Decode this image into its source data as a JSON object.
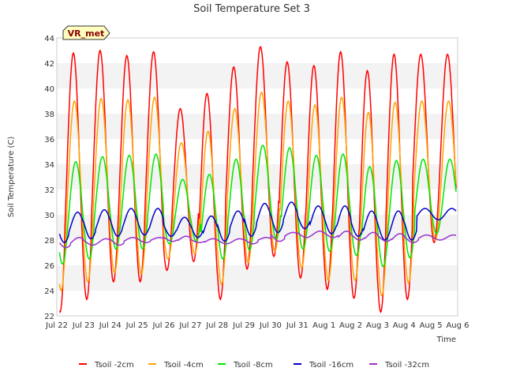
{
  "chart_data": {
    "type": "line",
    "title": "Soil Temperature Set 3",
    "xlabel": "Time",
    "ylabel": "Soil Temperature (C)",
    "badge": "VR_met",
    "ylim": [
      22,
      44
    ],
    "xlim": [
      "2024-07-22",
      "2024-08-06"
    ],
    "x_tick_labels": [
      "Jul 22",
      "Jul 23",
      "Jul 24",
      "Jul 25",
      "Jul 26",
      "Jul 27",
      "Jul 28",
      "Jul 29",
      "Jul 30",
      "Jul 31",
      "Aug 1",
      "Aug 2",
      "Aug 3",
      "Aug 4",
      "Aug 5",
      "Aug 6"
    ],
    "y_ticks": [
      22,
      24,
      26,
      28,
      30,
      32,
      34,
      36,
      38,
      40,
      42,
      44
    ],
    "grid": "horizontal alternating bands",
    "legend_position": "bottom",
    "dates": [
      "Jul 22",
      "Jul 23",
      "Jul 24",
      "Jul 25",
      "Jul 26",
      "Jul 27",
      "Jul 28",
      "Jul 29",
      "Jul 30",
      "Jul 31",
      "Aug 1",
      "Aug 2",
      "Aug 3",
      "Aug 4",
      "Aug 5"
    ],
    "series": [
      {
        "name": "Tsoil -2cm",
        "color": "#ff0000",
        "daily_max": [
          42.8,
          43.0,
          42.6,
          42.9,
          38.4,
          39.6,
          41.7,
          43.3,
          42.1,
          41.8,
          42.9,
          41.4,
          42.7,
          42.7,
          42.7
        ],
        "daily_min": [
          22.3,
          23.3,
          24.7,
          24.7,
          25.6,
          26.3,
          23.3,
          25.7,
          26.7,
          25.0,
          24.1,
          23.4,
          22.3,
          23.3,
          27.8
        ]
      },
      {
        "name": "Tsoil -4cm",
        "color": "#ffa500",
        "daily_max": [
          39.0,
          39.2,
          39.1,
          39.3,
          35.7,
          36.6,
          38.4,
          39.7,
          39.0,
          38.7,
          39.3,
          38.1,
          38.9,
          39.0,
          39.0
        ],
        "daily_min": [
          24.0,
          24.7,
          25.4,
          25.3,
          26.5,
          26.9,
          24.5,
          26.2,
          27.1,
          25.8,
          24.8,
          24.8,
          23.6,
          24.6,
          28.0
        ]
      },
      {
        "name": "Tsoil -8cm",
        "color": "#00e600",
        "daily_max": [
          34.2,
          34.6,
          34.7,
          34.8,
          32.8,
          33.2,
          34.4,
          35.5,
          35.3,
          34.7,
          34.8,
          33.8,
          34.3,
          34.4,
          34.4
        ],
        "daily_min": [
          26.1,
          26.5,
          27.3,
          27.3,
          27.7,
          27.9,
          26.5,
          27.2,
          28.1,
          27.3,
          27.1,
          26.8,
          25.9,
          26.6,
          28.5
        ]
      },
      {
        "name": "Tsoil -16cm",
        "color": "#0000cc",
        "daily_max": [
          30.2,
          30.4,
          30.5,
          30.5,
          29.8,
          29.9,
          30.3,
          30.9,
          31.0,
          30.7,
          30.7,
          30.3,
          30.3,
          30.5,
          30.5
        ],
        "daily_min": [
          27.8,
          28.1,
          28.3,
          28.4,
          28.3,
          28.2,
          27.9,
          28.3,
          28.6,
          28.9,
          28.5,
          28.3,
          28.0,
          28.0,
          29.6
        ]
      },
      {
        "name": "Tsoil -32cm",
        "color": "#9932cc",
        "daily_max": [
          28.2,
          28.1,
          28.2,
          28.2,
          28.3,
          28.1,
          28.1,
          28.2,
          28.6,
          28.7,
          28.7,
          28.6,
          28.5,
          28.4,
          28.4
        ],
        "daily_min": [
          27.4,
          27.6,
          27.6,
          27.8,
          27.9,
          27.8,
          27.7,
          27.7,
          27.9,
          28.2,
          28.2,
          28.0,
          27.9,
          27.8,
          28.0
        ]
      }
    ]
  }
}
